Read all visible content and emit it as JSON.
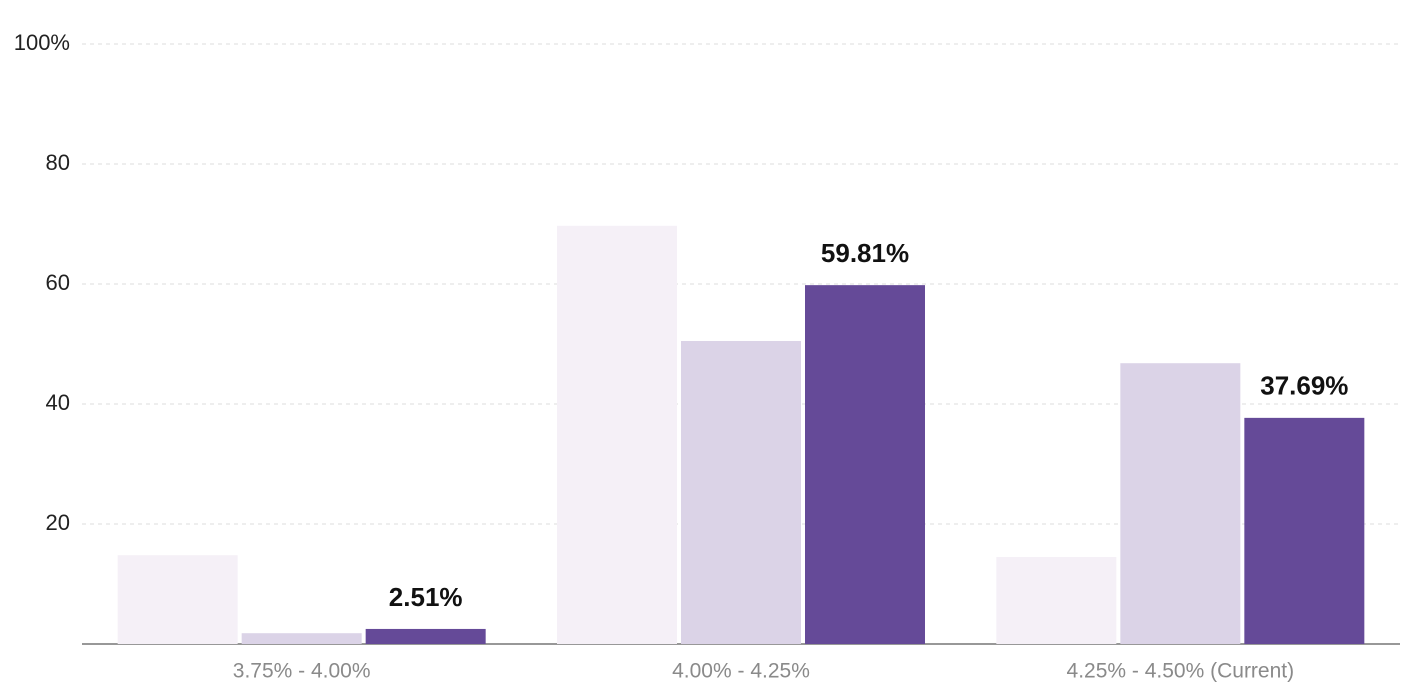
{
  "chart_data": {
    "type": "bar",
    "categories": [
      "3.75% - 4.00%",
      "4.00% - 4.25%",
      "4.25% - 4.50% (Current)"
    ],
    "series": [
      {
        "color": "#f5f0f7",
        "values": [
          14.8,
          69.7,
          14.5
        ]
      },
      {
        "color": "#dbd3e7",
        "values": [
          1.8,
          50.5,
          46.8
        ]
      },
      {
        "color": "#654a98",
        "values": [
          2.51,
          59.81,
          37.69
        ],
        "value_labels": [
          "2.51%",
          "59.81%",
          "37.69%"
        ]
      }
    ],
    "ylim": [
      0,
      100
    ],
    "yticks": [
      20,
      40,
      60,
      80,
      {
        "value": 100,
        "label": "100%"
      }
    ],
    "grid": true
  }
}
